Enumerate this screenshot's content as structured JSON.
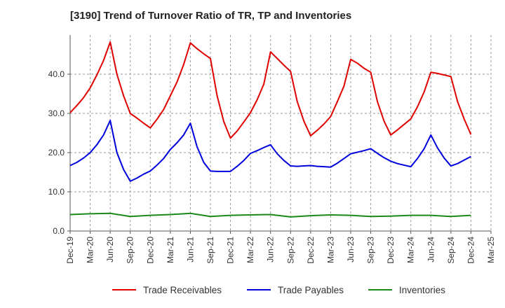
{
  "chart_data": {
    "type": "line",
    "title": "[3190]  Trend of Turnover Ratio of TR, TP and Inventories",
    "xlabel": "",
    "ylabel": "",
    "ylim": [
      0,
      50
    ],
    "yticks": [
      "0.0",
      "10.0",
      "20.0",
      "30.0",
      "40.0"
    ],
    "x_tick_labels": [
      "Dec-19",
      "Mar-20",
      "Jun-20",
      "Sep-20",
      "Dec-20",
      "Mar-21",
      "Jun-21",
      "Sep-21",
      "Dec-21",
      "Mar-22",
      "Jun-22",
      "Sep-22",
      "Dec-22",
      "Mar-23",
      "Jun-23",
      "Sep-23",
      "Dec-23",
      "Mar-24",
      "Jun-24",
      "Sep-24",
      "Dec-24",
      "Mar-25"
    ],
    "grid": true,
    "legend_position": "bottom",
    "series": [
      {
        "name": "Trade Receivables",
        "color": "#e00000",
        "points": [
          [
            0,
            30.2
          ],
          [
            1,
            32.0
          ],
          [
            2,
            34.0
          ],
          [
            3,
            36.5
          ],
          [
            4,
            39.8
          ],
          [
            5,
            43.5
          ],
          [
            6,
            48.2
          ],
          [
            7,
            40.0
          ],
          [
            8,
            34.5
          ],
          [
            9,
            30.0
          ],
          [
            10,
            28.8
          ],
          [
            11,
            27.5
          ],
          [
            12,
            26.3
          ],
          [
            13,
            28.5
          ],
          [
            14,
            31.0
          ],
          [
            15,
            34.5
          ],
          [
            16,
            38.0
          ],
          [
            17,
            42.5
          ],
          [
            18,
            48.0
          ],
          [
            19,
            46.5
          ],
          [
            20,
            45.2
          ],
          [
            21,
            44.0
          ],
          [
            22,
            34.5
          ],
          [
            23,
            27.9
          ],
          [
            24,
            23.7
          ],
          [
            25,
            25.5
          ],
          [
            26,
            27.8
          ],
          [
            27,
            30.2
          ],
          [
            28,
            33.5
          ],
          [
            29,
            37.5
          ],
          [
            30,
            45.7
          ],
          [
            31,
            44.0
          ],
          [
            32,
            42.3
          ],
          [
            33,
            40.7
          ],
          [
            34,
            33.0
          ],
          [
            35,
            28.0
          ],
          [
            36,
            24.3
          ],
          [
            37,
            25.7
          ],
          [
            38,
            27.3
          ],
          [
            39,
            29.2
          ],
          [
            40,
            33.0
          ],
          [
            41,
            37.0
          ],
          [
            42,
            43.8
          ],
          [
            43,
            42.8
          ],
          [
            44,
            41.5
          ],
          [
            45,
            40.5
          ],
          [
            46,
            33.0
          ],
          [
            47,
            28.0
          ],
          [
            48,
            24.5
          ],
          [
            49,
            25.8
          ],
          [
            50,
            27.2
          ],
          [
            51,
            28.6
          ],
          [
            52,
            31.7
          ],
          [
            53,
            35.5
          ],
          [
            54,
            40.5
          ],
          [
            55,
            40.2
          ],
          [
            56,
            39.8
          ],
          [
            57,
            39.4
          ],
          [
            58,
            33.0
          ],
          [
            59,
            28.5
          ],
          [
            60,
            24.6
          ]
        ]
      },
      {
        "name": "Trade Payables",
        "color": "#0000dd",
        "points": [
          [
            0,
            16.7
          ],
          [
            1,
            17.5
          ],
          [
            2,
            18.6
          ],
          [
            3,
            20.0
          ],
          [
            4,
            22.0
          ],
          [
            5,
            24.5
          ],
          [
            6,
            28.2
          ],
          [
            7,
            20.0
          ],
          [
            8,
            15.7
          ],
          [
            9,
            12.7
          ],
          [
            10,
            13.5
          ],
          [
            11,
            14.5
          ],
          [
            12,
            15.3
          ],
          [
            13,
            16.8
          ],
          [
            14,
            18.5
          ],
          [
            15,
            20.8
          ],
          [
            16,
            22.5
          ],
          [
            17,
            24.5
          ],
          [
            18,
            27.5
          ],
          [
            19,
            21.5
          ],
          [
            20,
            17.5
          ],
          [
            21,
            15.3
          ],
          [
            22,
            15.2
          ],
          [
            23,
            15.2
          ],
          [
            24,
            15.2
          ],
          [
            25,
            16.5
          ],
          [
            26,
            18.0
          ],
          [
            27,
            19.8
          ],
          [
            28,
            20.5
          ],
          [
            29,
            21.3
          ],
          [
            30,
            22.0
          ],
          [
            31,
            19.7
          ],
          [
            32,
            18.0
          ],
          [
            33,
            16.6
          ],
          [
            34,
            16.5
          ],
          [
            35,
            16.6
          ],
          [
            36,
            16.7
          ],
          [
            37,
            16.5
          ],
          [
            38,
            16.4
          ],
          [
            39,
            16.3
          ],
          [
            40,
            17.3
          ],
          [
            41,
            18.5
          ],
          [
            42,
            19.7
          ],
          [
            43,
            20.1
          ],
          [
            44,
            20.5
          ],
          [
            45,
            21.0
          ],
          [
            46,
            19.8
          ],
          [
            47,
            18.7
          ],
          [
            48,
            17.8
          ],
          [
            49,
            17.2
          ],
          [
            50,
            16.8
          ],
          [
            51,
            16.4
          ],
          [
            52,
            18.5
          ],
          [
            53,
            21.0
          ],
          [
            54,
            24.5
          ],
          [
            55,
            21.2
          ],
          [
            56,
            18.6
          ],
          [
            57,
            16.6
          ],
          [
            58,
            17.2
          ],
          [
            59,
            18.1
          ],
          [
            60,
            19.0
          ]
        ]
      },
      {
        "name": "Inventories",
        "color": "#1a8a1a",
        "points": [
          [
            0,
            4.2
          ],
          [
            3,
            4.4
          ],
          [
            6,
            4.5
          ],
          [
            9,
            3.7
          ],
          [
            12,
            4.0
          ],
          [
            15,
            4.2
          ],
          [
            18,
            4.5
          ],
          [
            21,
            3.7
          ],
          [
            24,
            4.0
          ],
          [
            27,
            4.1
          ],
          [
            30,
            4.2
          ],
          [
            33,
            3.6
          ],
          [
            36,
            3.9
          ],
          [
            39,
            4.1
          ],
          [
            42,
            4.0
          ],
          [
            45,
            3.7
          ],
          [
            48,
            3.8
          ],
          [
            51,
            4.0
          ],
          [
            54,
            4.0
          ],
          [
            57,
            3.7
          ],
          [
            60,
            4.0
          ]
        ]
      }
    ]
  }
}
